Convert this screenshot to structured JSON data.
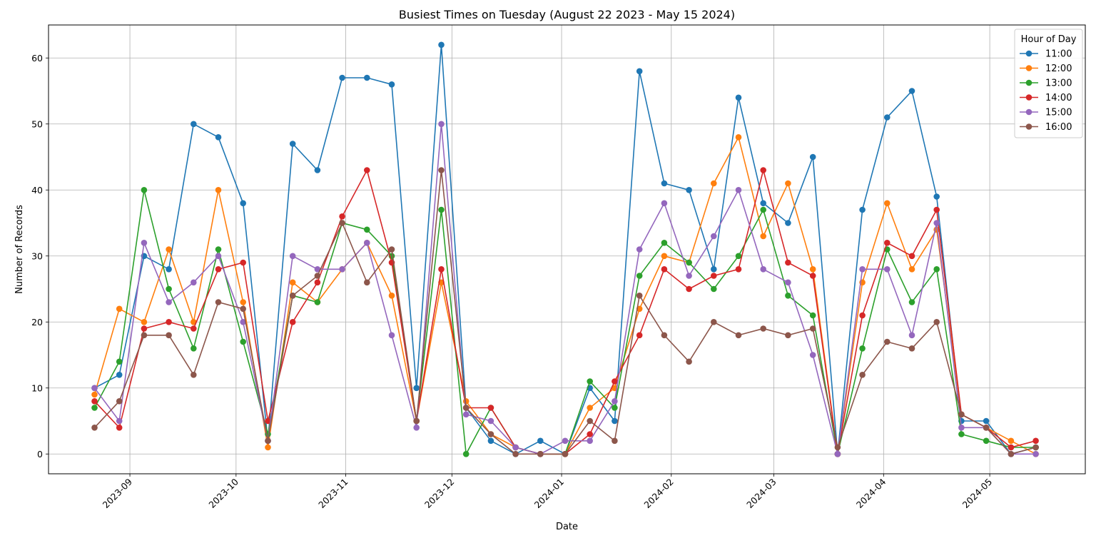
{
  "chart_data": {
    "type": "line",
    "title": "Busiest Times on Tuesday (August 22 2023 - May 15 2024)",
    "xlabel": "Date",
    "ylabel": "Number of Records",
    "ylim": [
      -3,
      65
    ],
    "xlim": [
      "2023-08-09",
      "2024-05-28"
    ],
    "yticks": [
      0,
      10,
      20,
      30,
      40,
      50,
      60
    ],
    "xticks": [
      "2023-09-01",
      "2023-10-01",
      "2023-11-01",
      "2023-12-01",
      "2024-01-01",
      "2024-02-01",
      "2024-03-01",
      "2024-04-01",
      "2024-05-01"
    ],
    "xtick_labels": [
      "2023-09",
      "2023-10",
      "2023-11",
      "2023-12",
      "2024-01",
      "2024-02",
      "2024-03",
      "2024-04",
      "2024-05"
    ],
    "grid": true,
    "legend": {
      "title": "Hour of Day",
      "placement": "top-right"
    },
    "x": [
      "2023-08-22",
      "2023-08-29",
      "2023-09-05",
      "2023-09-12",
      "2023-09-19",
      "2023-09-26",
      "2023-10-03",
      "2023-10-10",
      "2023-10-17",
      "2023-10-24",
      "2023-10-31",
      "2023-11-07",
      "2023-11-14",
      "2023-11-21",
      "2023-11-28",
      "2023-12-05",
      "2023-12-12",
      "2023-12-19",
      "2023-12-26",
      "2024-01-02",
      "2024-01-09",
      "2024-01-16",
      "2024-01-23",
      "2024-01-30",
      "2024-02-06",
      "2024-02-13",
      "2024-02-20",
      "2024-02-27",
      "2024-03-05",
      "2024-03-12",
      "2024-03-19",
      "2024-03-26",
      "2024-04-02",
      "2024-04-09",
      "2024-04-16",
      "2024-04-23",
      "2024-04-30",
      "2024-05-07",
      "2024-05-14"
    ],
    "series": [
      {
        "name": "11:00",
        "color": "#1f77b4",
        "values": [
          10,
          12,
          30,
          28,
          50,
          48,
          38,
          2,
          47,
          43,
          57,
          57,
          56,
          10,
          62,
          7,
          2,
          0,
          2,
          0,
          10,
          5,
          58,
          41,
          40,
          28,
          54,
          38,
          35,
          45,
          0,
          37,
          51,
          55,
          39,
          5,
          5,
          0,
          1
        ]
      },
      {
        "name": "12:00",
        "color": "#ff7f0e",
        "values": [
          9,
          22,
          20,
          31,
          20,
          40,
          23,
          1,
          26,
          23,
          28,
          32,
          24,
          5,
          26,
          8,
          3,
          1,
          0,
          0,
          7,
          10,
          22,
          30,
          29,
          41,
          48,
          33,
          41,
          28,
          0,
          26,
          38,
          28,
          34,
          6,
          4,
          2,
          0
        ]
      },
      {
        "name": "13:00",
        "color": "#2ca02c",
        "values": [
          7,
          14,
          40,
          25,
          16,
          31,
          17,
          3,
          24,
          23,
          35,
          34,
          30,
          5,
          37,
          0,
          7,
          1,
          0,
          0,
          11,
          7,
          27,
          32,
          29,
          25,
          30,
          37,
          24,
          21,
          0,
          16,
          31,
          23,
          28,
          3,
          2,
          1,
          1
        ]
      },
      {
        "name": "14:00",
        "color": "#d62728",
        "values": [
          8,
          4,
          19,
          20,
          19,
          28,
          29,
          5,
          20,
          26,
          36,
          43,
          29,
          5,
          28,
          7,
          7,
          1,
          0,
          0,
          3,
          11,
          18,
          28,
          25,
          27,
          28,
          43,
          29,
          27,
          0,
          21,
          32,
          30,
          37,
          6,
          4,
          1,
          2
        ]
      },
      {
        "name": "15:00",
        "color": "#9467bd",
        "values": [
          10,
          5,
          32,
          23,
          26,
          30,
          20,
          2,
          30,
          28,
          28,
          32,
          18,
          4,
          50,
          6,
          5,
          1,
          0,
          2,
          2,
          8,
          31,
          38,
          27,
          33,
          40,
          28,
          26,
          15,
          0,
          28,
          28,
          18,
          35,
          4,
          4,
          0,
          0
        ]
      },
      {
        "name": "16:00",
        "color": "#8c564b",
        "values": [
          4,
          8,
          18,
          18,
          12,
          23,
          22,
          2,
          24,
          27,
          35,
          26,
          31,
          5,
          43,
          7,
          3,
          0,
          0,
          0,
          5,
          2,
          24,
          18,
          14,
          20,
          18,
          19,
          18,
          19,
          1,
          12,
          17,
          16,
          20,
          6,
          4,
          0,
          1
        ]
      }
    ]
  }
}
